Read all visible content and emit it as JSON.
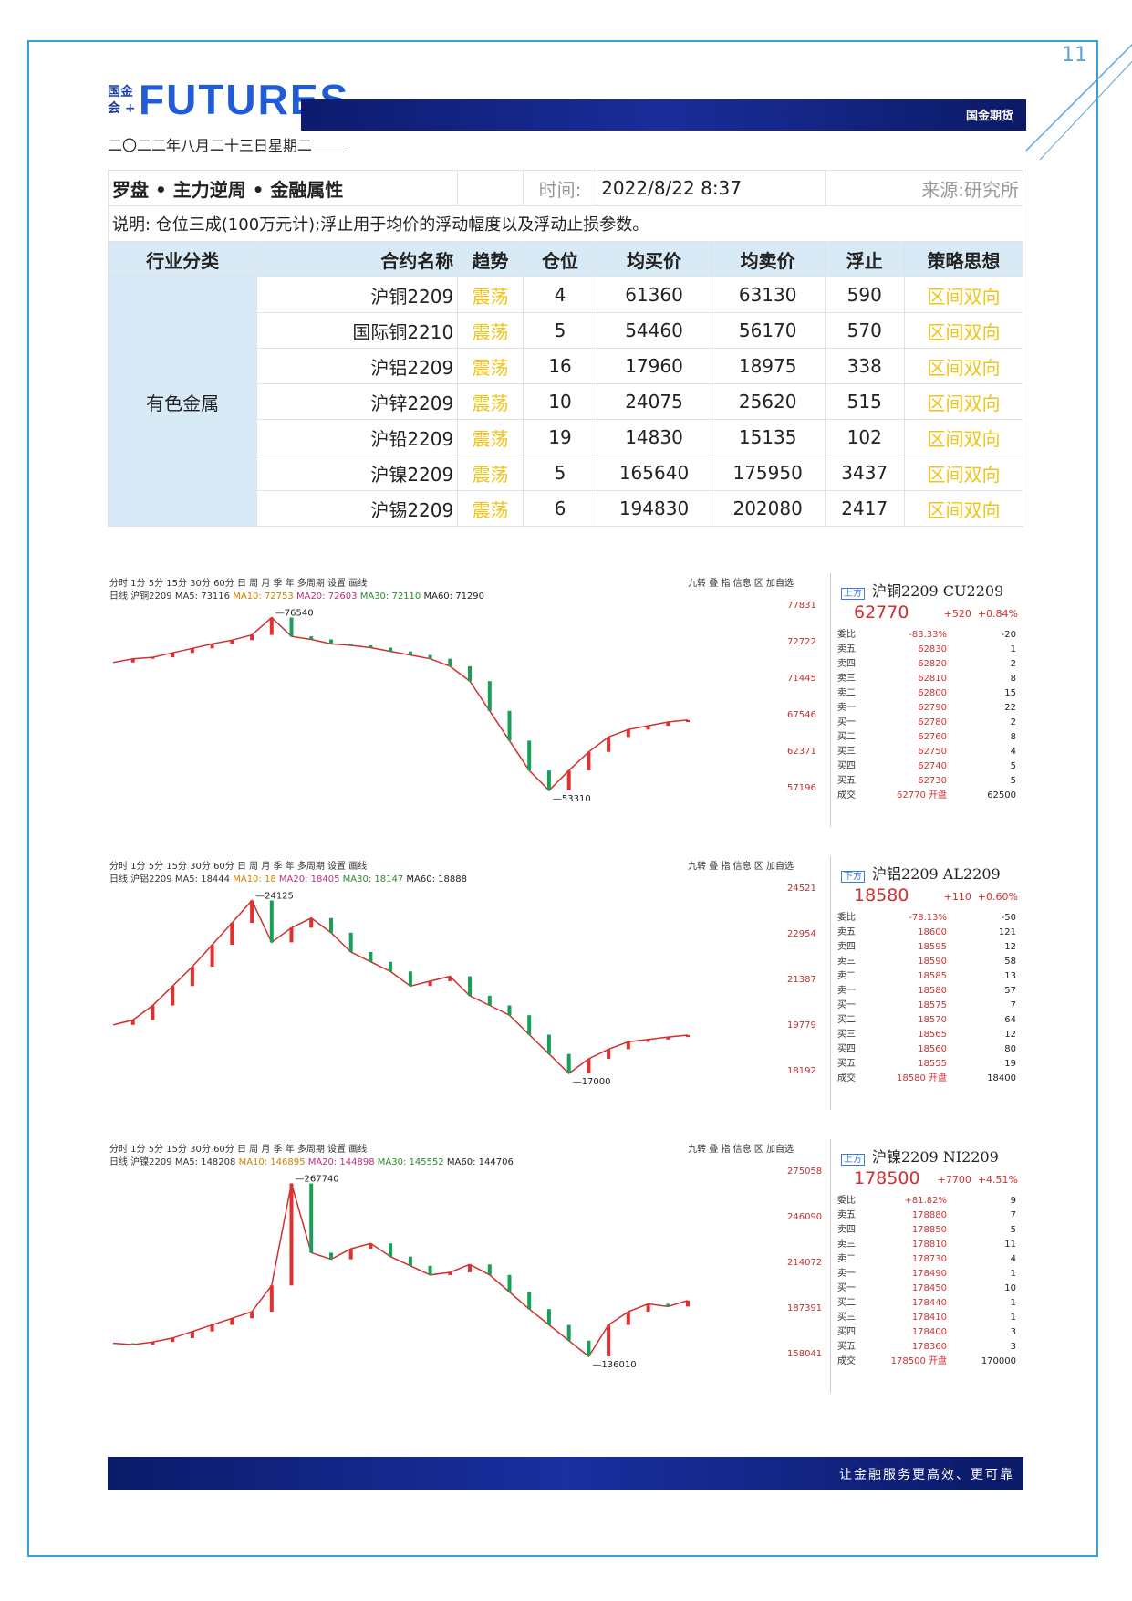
{
  "page_number": "11",
  "logo": {
    "small_line1": "国金",
    "small_line2": "会 +",
    "big": "FUTURES",
    "brand": "国金期货"
  },
  "date": "二〇二二年八月二十三日星期二",
  "table": {
    "title": "罗盘 • 主力逆周 • 金融属性",
    "time_label": "时间:",
    "time_value": "2022/8/22 8:37",
    "source": "来源:研究所",
    "note": "说明: 仓位三成(100万元计);浮止用于均价的浮动幅度以及浮动止损参数。",
    "headers": [
      "行业分类",
      "合约名称",
      "趋势",
      "仓位",
      "均买价",
      "均卖价",
      "浮止",
      "策略思想"
    ],
    "category": "有色金属",
    "rows": [
      {
        "name": "沪铜2209",
        "trend": "震荡",
        "pos": "4",
        "buy": "61360",
        "sell": "63130",
        "stop": "590",
        "strategy": "区间双向"
      },
      {
        "name": "国际铜2210",
        "trend": "震荡",
        "pos": "5",
        "buy": "54460",
        "sell": "56170",
        "stop": "570",
        "strategy": "区间双向"
      },
      {
        "name": "沪铝2209",
        "trend": "震荡",
        "pos": "16",
        "buy": "17960",
        "sell": "18975",
        "stop": "338",
        "strategy": "区间双向"
      },
      {
        "name": "沪锌2209",
        "trend": "震荡",
        "pos": "10",
        "buy": "24075",
        "sell": "25620",
        "stop": "515",
        "strategy": "区间双向"
      },
      {
        "name": "沪铅2209",
        "trend": "震荡",
        "pos": "19",
        "buy": "14830",
        "sell": "15135",
        "stop": "102",
        "strategy": "区间双向"
      },
      {
        "name": "沪镍2209",
        "trend": "震荡",
        "pos": "5",
        "buy": "165640",
        "sell": "175950",
        "stop": "3437",
        "strategy": "区间双向"
      },
      {
        "name": "沪锡2209",
        "trend": "震荡",
        "pos": "6",
        "buy": "194830",
        "sell": "202080",
        "stop": "2417",
        "strategy": "区间双向"
      }
    ]
  },
  "charts": [
    {
      "toolbar": "分时 1分 5分 15分 30分 60分 日 周 月 季 年 多周期 设置 画线",
      "toolbar_right": "九转 叠 指 信息 区 加自选",
      "ma_title": "日线 沪铜2209",
      "ma5": "MA5: 73116",
      "ma10": "MA10: 72753",
      "ma20": "MA20: 72603",
      "ma30": "MA30: 72110",
      "ma60": "MA60: 71290",
      "axis": [
        "77831",
        "72722",
        "71445",
        "67546",
        "62371",
        "57196"
      ],
      "peak": "76540",
      "trough": "53310",
      "quote": {
        "tag": "上方",
        "title": "沪铜2209 CU2209",
        "price": "62770",
        "change": "+520",
        "pct": "+0.84%",
        "rows": [
          [
            "委比",
            "-83.33%",
            "-20"
          ],
          [
            "卖五",
            "62830",
            "1"
          ],
          [
            "卖四",
            "62820",
            "2"
          ],
          [
            "卖三",
            "62810",
            "8"
          ],
          [
            "卖二",
            "62800",
            "15"
          ],
          [
            "卖一",
            "62790",
            "22"
          ],
          [
            "买一",
            "62780",
            "2"
          ],
          [
            "买二",
            "62760",
            "8"
          ],
          [
            "买三",
            "62750",
            "4"
          ],
          [
            "买四",
            "62740",
            "5"
          ],
          [
            "买五",
            "62730",
            "5"
          ],
          [
            "成交",
            "62770 开盘",
            "62500"
          ]
        ]
      },
      "chart_data": {
        "type": "line",
        "ylim": [
          53310,
          77831
        ],
        "values": [
          70500,
          71000,
          71200,
          71800,
          72400,
          73000,
          73500,
          74200,
          76540,
          74000,
          73600,
          73000,
          72800,
          72500,
          72000,
          71500,
          71000,
          70000,
          68000,
          64000,
          60000,
          56000,
          53310,
          56000,
          58500,
          60500,
          61500,
          62000,
          62500,
          62770
        ]
      }
    },
    {
      "toolbar": "分时 1分 5分 15分 30分 60分 日 周 月 季 年 多周期 设置 画线",
      "toolbar_right": "九转 叠 指 信息 区 加自选",
      "ma_title": "日线 沪铝2209",
      "ma5": "MA5: 18444",
      "ma10": "MA10: 18",
      "ma20": "MA20: 18405",
      "ma30": "MA30: 18147",
      "ma60": "MA60: 18888",
      "axis": [
        "24521",
        "22954",
        "21387",
        "19779",
        "18192"
      ],
      "peak": "24125",
      "trough": "17000",
      "quote": {
        "tag": "下方",
        "title": "沪铝2209 AL2209",
        "price": "18580",
        "change": "+110",
        "pct": "+0.60%",
        "rows": [
          [
            "委比",
            "-78.13%",
            "-50"
          ],
          [
            "卖五",
            "18600",
            "121"
          ],
          [
            "卖四",
            "18595",
            "12"
          ],
          [
            "卖三",
            "18590",
            "58"
          ],
          [
            "卖二",
            "18585",
            "13"
          ],
          [
            "卖一",
            "18580",
            "57"
          ],
          [
            "买一",
            "18575",
            "7"
          ],
          [
            "买二",
            "18570",
            "64"
          ],
          [
            "买三",
            "18565",
            "12"
          ],
          [
            "买四",
            "18560",
            "80"
          ],
          [
            "买五",
            "18555",
            "19"
          ],
          [
            "成交",
            "18580 开盘",
            "18400"
          ]
        ]
      },
      "chart_data": {
        "type": "line",
        "ylim": [
          17000,
          24521
        ],
        "values": [
          19000,
          19200,
          19800,
          20600,
          21400,
          22300,
          23200,
          24125,
          22400,
          23000,
          23400,
          22800,
          22000,
          21600,
          21200,
          20600,
          20800,
          21000,
          20200,
          19800,
          19400,
          18600,
          17800,
          17000,
          17600,
          18000,
          18300,
          18400,
          18500,
          18580
        ]
      }
    },
    {
      "toolbar": "分时 1分 5分 15分 30分 60分 日 周 月 季 年 多周期 设置 画线",
      "toolbar_right": "九转 叠 指 信息 区 加自选",
      "ma_title": "日线 沪镍2209",
      "ma5": "MA5: 148208",
      "ma10": "MA10: 146895",
      "ma20": "MA20: 144898",
      "ma30": "MA30: 145552",
      "ma60": "MA60: 144706",
      "axis": [
        "275058",
        "246090",
        "214072",
        "187391",
        "158041"
      ],
      "peak": "267740",
      "trough": "136010",
      "quote": {
        "tag": "上方",
        "title": "沪镍2209 NI2209",
        "price": "178500",
        "change": "+7700",
        "pct": "+4.51%",
        "rows": [
          [
            "委比",
            "+81.82%",
            "9"
          ],
          [
            "卖五",
            "178880",
            "7"
          ],
          [
            "卖四",
            "178850",
            "5"
          ],
          [
            "卖三",
            "178810",
            "11"
          ],
          [
            "卖二",
            "178730",
            "4"
          ],
          [
            "卖一",
            "178490",
            "1"
          ],
          [
            "买一",
            "178450",
            "10"
          ],
          [
            "买二",
            "178440",
            "1"
          ],
          [
            "买三",
            "178410",
            "1"
          ],
          [
            "买四",
            "178400",
            "3"
          ],
          [
            "买五",
            "178360",
            "3"
          ],
          [
            "成交",
            "178500 开盘",
            "170000"
          ]
        ]
      },
      "chart_data": {
        "type": "line",
        "ylim": [
          136010,
          275058
        ],
        "values": [
          146000,
          145000,
          147000,
          150000,
          155000,
          160000,
          165000,
          170000,
          190000,
          267740,
          215000,
          210000,
          218000,
          222000,
          212000,
          205000,
          198000,
          200000,
          206000,
          198000,
          185000,
          172000,
          160000,
          148000,
          136010,
          160000,
          170000,
          176000,
          174000,
          178500
        ]
      }
    }
  ],
  "footer": "让金融服务更高效、更可靠"
}
